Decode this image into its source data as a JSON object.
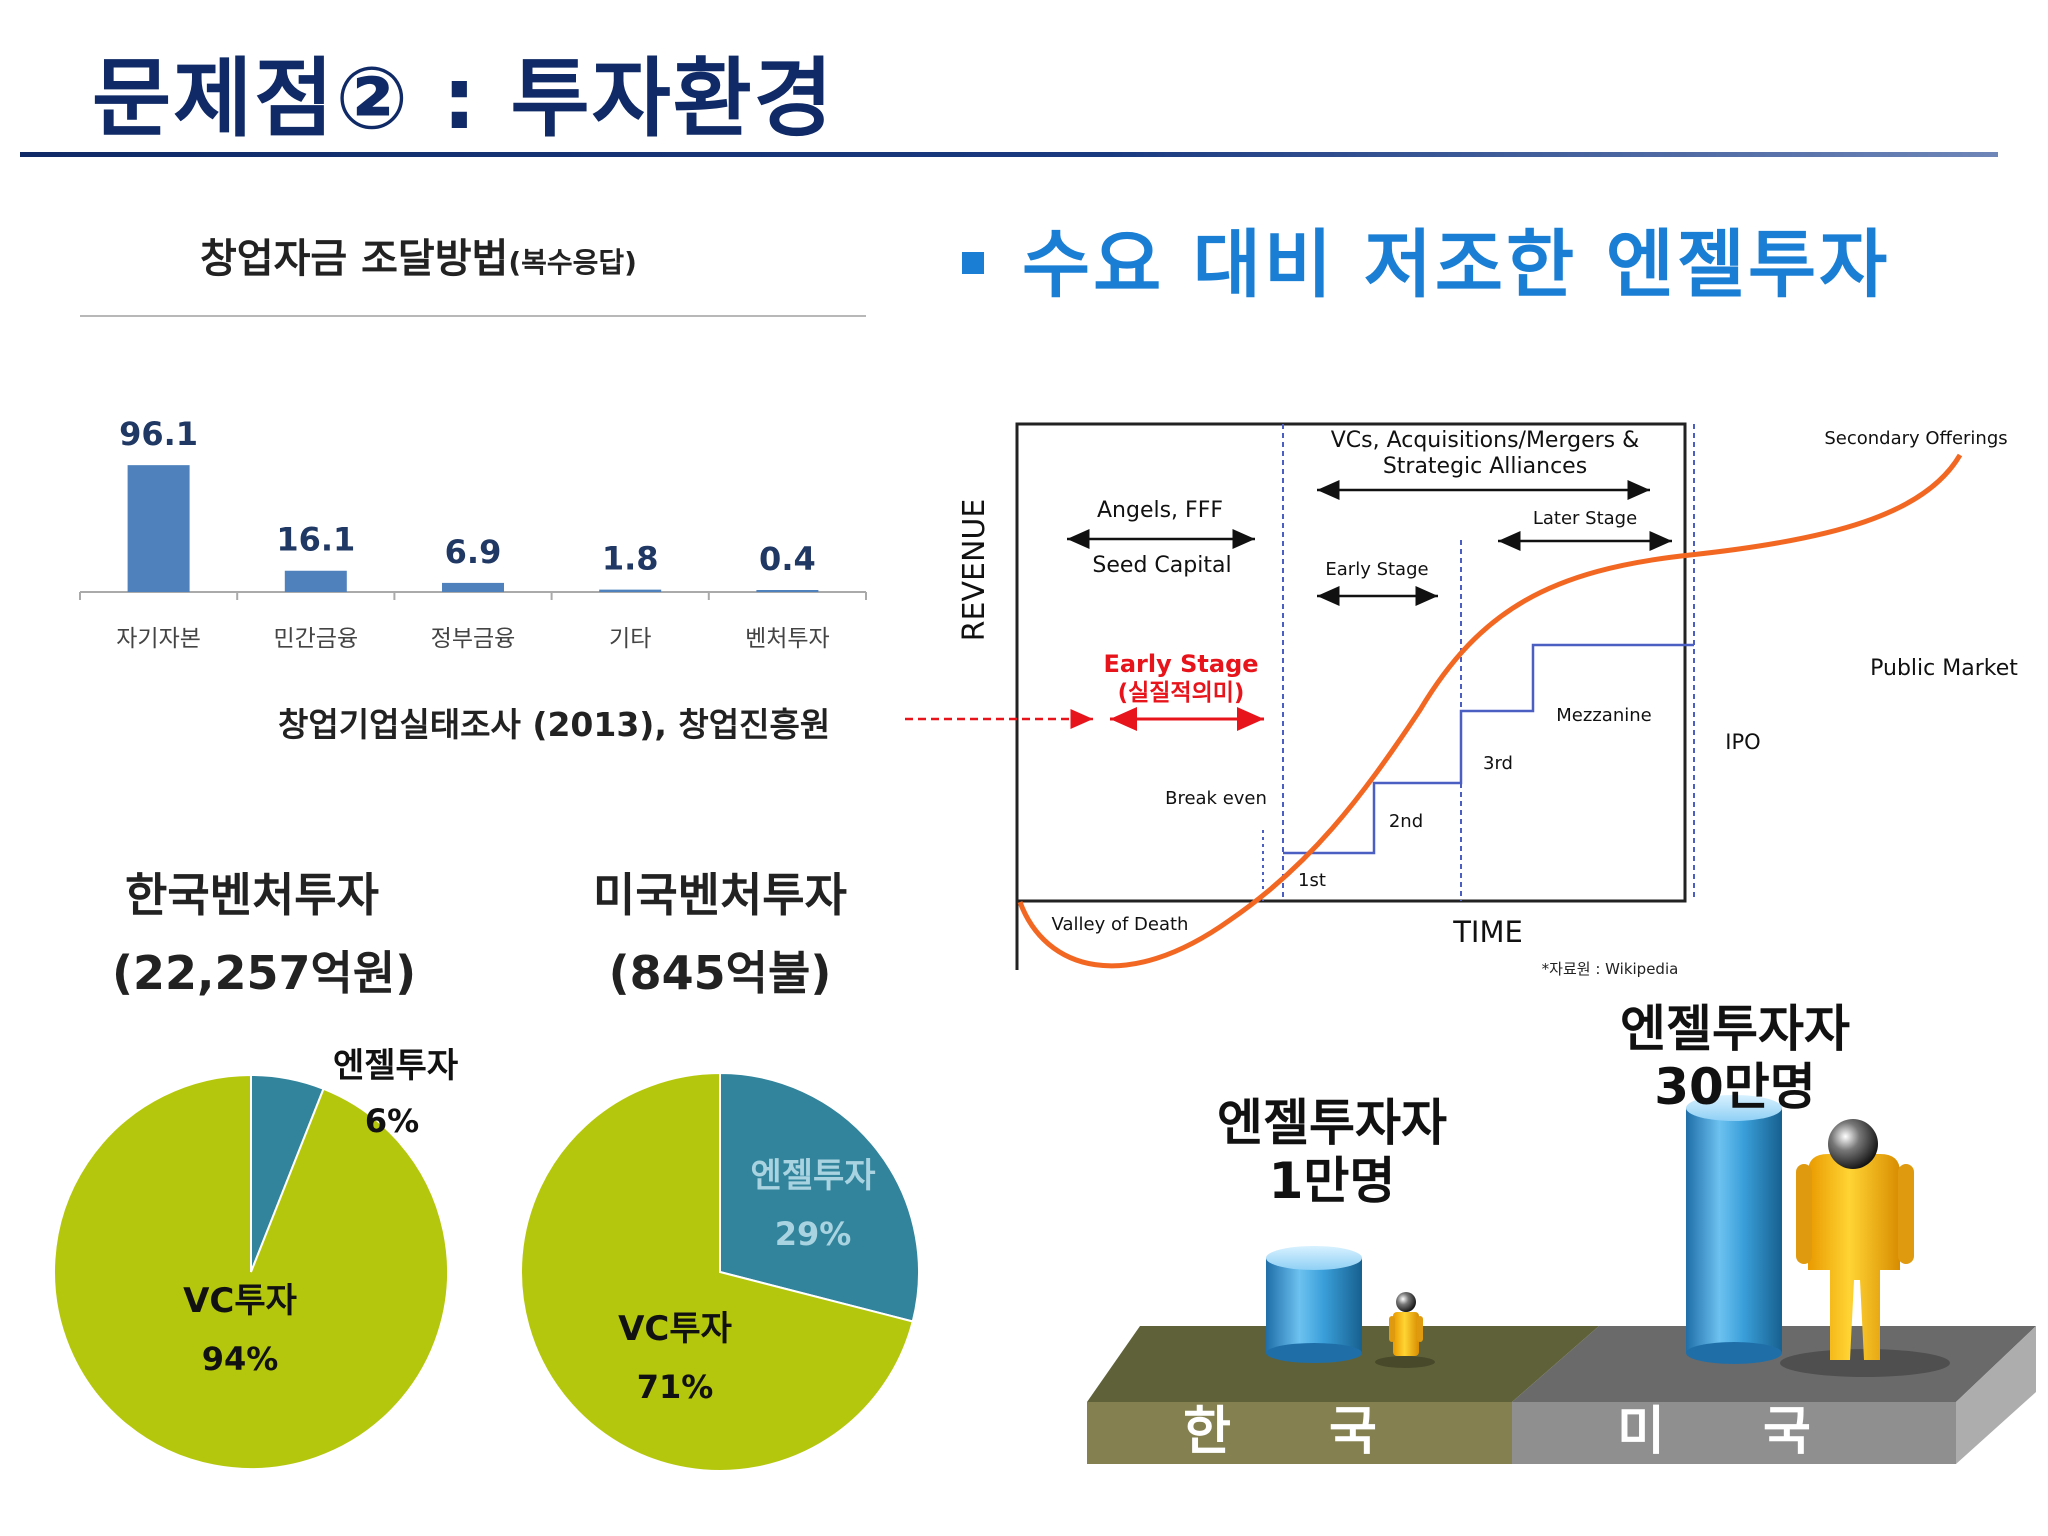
{
  "slide": {
    "title": "문제점② : 투자환경",
    "headline": "수요 대비 저조한 엔젤투자"
  },
  "bar_section": {
    "title": "창업자금 조달방법",
    "title_suffix": "(복수응답)",
    "source": "창업기업실태조사 (2013), 창업진흥원"
  },
  "pie_section": {
    "korea_title": "한국벤처투자",
    "korea_amount": "(22,257억원)",
    "us_title": "미국벤처투자",
    "us_amount": "(845억불)"
  },
  "lifecycle": {
    "ylabel": "REVENUE",
    "xlabel": "TIME",
    "vc_label_line1": "VCs, Acquisitions/Mergers &",
    "vc_label_line2": "Strategic Alliances",
    "angels": "Angels, FFF",
    "seed": "Seed Capital",
    "early_stage": "Early Stage",
    "later_stage": "Later Stage",
    "early_highlight": "Early Stage",
    "early_highlight_sub": "(실질적의미)",
    "break_even": "Break even",
    "valley": "Valley of Death",
    "rounds": [
      "1st",
      "2nd",
      "3rd",
      "Mezzanine",
      "IPO"
    ],
    "secondary": "Secondary Offerings",
    "public_market": "Public Market",
    "credit": "*자료원 : Wikipedia"
  },
  "comparison": {
    "korea_label_1": "엔젤투자자",
    "korea_label_2": "1만명",
    "us_label_1": "엔젤투자자",
    "us_label_2": "30만명",
    "korea_country": "한 국",
    "us_country": "미 국"
  },
  "colors": {
    "title": "#0f2a66",
    "headline": "#1a7fd4",
    "bar": "#4f81bd",
    "pie_vc": "#b5c70d",
    "pie_angel": "#31849b",
    "curve": "#f26722",
    "round_line": "#4a5fc1",
    "highlight": "#e8141b"
  },
  "chart_data": [
    {
      "type": "bar",
      "title": "창업자금 조달방법(복수응답)",
      "categories": [
        "자기자본",
        "민간금융",
        "정부금융",
        "기타",
        "벤처투자"
      ],
      "values": [
        96.1,
        16.1,
        6.9,
        1.8,
        0.4
      ],
      "value_labels": [
        "96.1",
        "16.1",
        "6.9",
        "1.8",
        "0.4"
      ],
      "ylim": [
        0,
        100
      ],
      "grid": false,
      "source": "창업기업실태조사 (2013), 창업진흥원"
    },
    {
      "type": "pie",
      "title": "한국벤처투자 (22,257억원)",
      "slices": [
        {
          "label": "엔젤투자",
          "value": 6,
          "value_label": "6%"
        },
        {
          "label": "VC투자",
          "value": 94,
          "value_label": "94%"
        }
      ]
    },
    {
      "type": "pie",
      "title": "미국벤처투자 (845억불)",
      "slices": [
        {
          "label": "엔젤투자",
          "value": 29,
          "value_label": "29%"
        },
        {
          "label": "VC투자",
          "value": 71,
          "value_label": "71%"
        }
      ]
    }
  ]
}
